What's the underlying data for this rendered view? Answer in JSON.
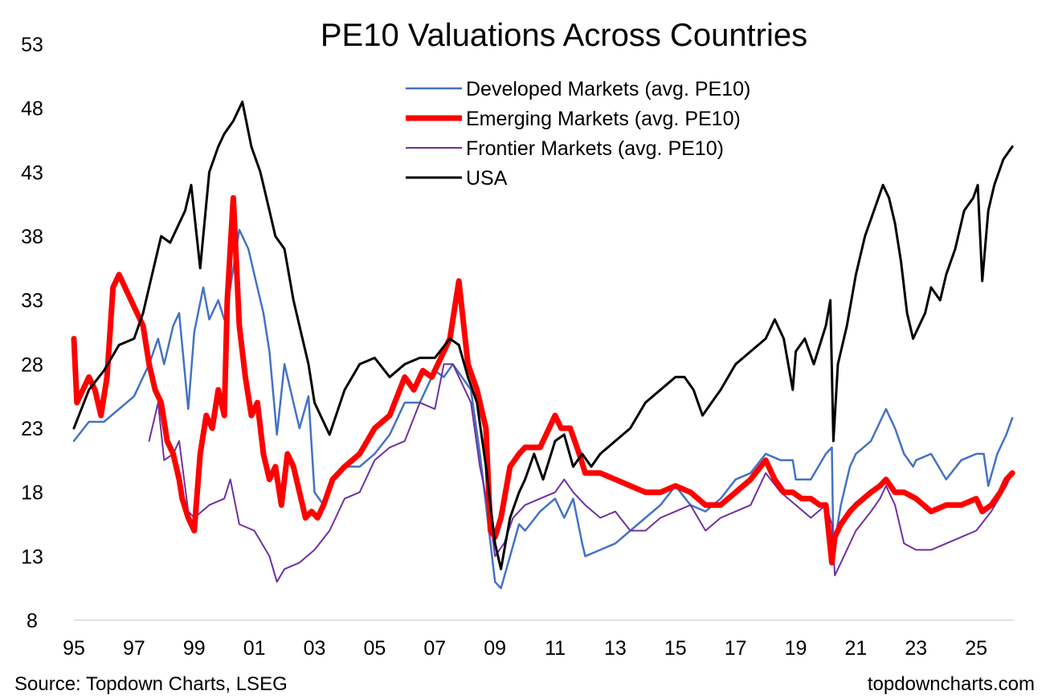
{
  "chart_data": {
    "type": "line",
    "title": "PE10 Valuations Across Countries",
    "xlabel": "",
    "ylabel": "",
    "xlim": [
      1995.0,
      2026.25
    ],
    "ylim": [
      8,
      53
    ],
    "y_ticks": [
      8,
      13,
      18,
      23,
      28,
      33,
      38,
      43,
      48,
      53
    ],
    "x_ticks": [
      {
        "value": 1995,
        "label": "95"
      },
      {
        "value": 1997,
        "label": "97"
      },
      {
        "value": 1999,
        "label": "99"
      },
      {
        "value": 2001,
        "label": "01"
      },
      {
        "value": 2003,
        "label": "03"
      },
      {
        "value": 2005,
        "label": "05"
      },
      {
        "value": 2007,
        "label": "07"
      },
      {
        "value": 2009,
        "label": "09"
      },
      {
        "value": 2011,
        "label": "11"
      },
      {
        "value": 2013,
        "label": "13"
      },
      {
        "value": 2015,
        "label": "15"
      },
      {
        "value": 2017,
        "label": "17"
      },
      {
        "value": 2019,
        "label": "19"
      },
      {
        "value": 2021,
        "label": "21"
      },
      {
        "value": 2023,
        "label": "23"
      },
      {
        "value": 2025,
        "label": "25"
      }
    ],
    "grid": false,
    "legend_position": "top-center",
    "series": [
      {
        "name": "Developed Markets (avg. PE10)",
        "color": "#4472C4",
        "x": [
          1995.0,
          1995.5,
          1996.0,
          1996.5,
          1997.0,
          1997.5,
          1997.8,
          1998.0,
          1998.3,
          1998.5,
          1998.8,
          1999.0,
          1999.3,
          1999.5,
          1999.8,
          2000.0,
          2000.2,
          2000.5,
          2000.8,
          2001.0,
          2001.3,
          2001.5,
          2001.75,
          2002.0,
          2002.3,
          2002.5,
          2002.8,
          2003.0,
          2003.3,
          2003.5,
          2004.0,
          2004.5,
          2005.0,
          2005.5,
          2006.0,
          2006.5,
          2007.0,
          2007.3,
          2007.6,
          2007.9,
          2008.2,
          2008.5,
          2008.8,
          2009.0,
          2009.2,
          2009.5,
          2009.8,
          2010.0,
          2010.5,
          2011.0,
          2011.3,
          2011.6,
          2011.9,
          2012.0,
          2012.5,
          2013.0,
          2013.5,
          2014.0,
          2014.5,
          2015.0,
          2015.5,
          2016.0,
          2016.5,
          2017.0,
          2017.5,
          2018.0,
          2018.5,
          2018.9,
          2019.0,
          2019.5,
          2020.0,
          2020.2,
          2020.25,
          2020.5,
          2020.8,
          2021.0,
          2021.5,
          2021.8,
          2022.0,
          2022.3,
          2022.6,
          2022.9,
          2023.0,
          2023.5,
          2024.0,
          2024.5,
          2025.0,
          2025.25,
          2025.4,
          2025.7,
          2026.0,
          2026.2
        ],
        "y": [
          22,
          23.5,
          23.5,
          24.5,
          25.5,
          28,
          30,
          28,
          31,
          32,
          24.5,
          30.5,
          34,
          31.5,
          33,
          31.5,
          34,
          38.5,
          37,
          35,
          32,
          29,
          22.5,
          28,
          25,
          23,
          25.5,
          18,
          17,
          18.5,
          20,
          20,
          21,
          22.5,
          25,
          25,
          27.5,
          27,
          28,
          27,
          26,
          21,
          15,
          11,
          10.5,
          13,
          15.5,
          15,
          16.5,
          17.5,
          16,
          17.5,
          14,
          13,
          13.5,
          14,
          15,
          16,
          17,
          18.5,
          17,
          16.5,
          17.5,
          19,
          19.5,
          21,
          20.5,
          20.5,
          19,
          19,
          21,
          21.5,
          13.5,
          17,
          20,
          21,
          22,
          23.5,
          24.5,
          23,
          21,
          20,
          20.5,
          21,
          19,
          20.5,
          21,
          21,
          18.5,
          21,
          22.5,
          23.8
        ]
      },
      {
        "name": "Emerging Markets (avg. PE10)",
        "color": "#FF0000",
        "x": [
          1995.0,
          1995.1,
          1995.3,
          1995.5,
          1995.7,
          1995.9,
          1996.1,
          1996.3,
          1996.5,
          1996.7,
          1996.9,
          1997.1,
          1997.3,
          1997.5,
          1997.7,
          1997.9,
          1998.1,
          1998.3,
          1998.5,
          1998.6,
          1998.8,
          1999.0,
          1999.2,
          1999.4,
          1999.6,
          1999.8,
          2000.0,
          2000.1,
          2000.3,
          2000.5,
          2000.7,
          2000.9,
          2001.1,
          2001.3,
          2001.5,
          2001.7,
          2001.9,
          2002.1,
          2002.3,
          2002.5,
          2002.7,
          2002.9,
          2003.1,
          2003.3,
          2003.6,
          2004.0,
          2004.5,
          2005.0,
          2005.5,
          2006.0,
          2006.3,
          2006.6,
          2006.9,
          2007.2,
          2007.5,
          2007.8,
          2008.1,
          2008.4,
          2008.7,
          2008.85,
          2009.0,
          2009.2,
          2009.5,
          2009.8,
          2010.0,
          2010.5,
          2011.0,
          2011.2,
          2011.5,
          2011.8,
          2012.0,
          2012.5,
          2013.0,
          2013.5,
          2014.0,
          2014.5,
          2015.0,
          2015.5,
          2016.0,
          2016.5,
          2017.0,
          2017.5,
          2018.0,
          2018.3,
          2018.6,
          2018.9,
          2019.2,
          2019.5,
          2019.8,
          2020.0,
          2020.2,
          2020.3,
          2020.5,
          2020.8,
          2021.0,
          2021.5,
          2021.8,
          2022.0,
          2022.3,
          2022.6,
          2023.0,
          2023.5,
          2024.0,
          2024.5,
          2025.0,
          2025.2,
          2025.5,
          2025.8,
          2026.0,
          2026.2
        ],
        "y": [
          30,
          25,
          26,
          27,
          26,
          24,
          27,
          34,
          35,
          34,
          33,
          32,
          31,
          28,
          26,
          25,
          22,
          21,
          19,
          17.5,
          16,
          15,
          21,
          24,
          23,
          26,
          24,
          33,
          41,
          31,
          27,
          24,
          25,
          21,
          19,
          20,
          17,
          21,
          20,
          18,
          16,
          16.5,
          16,
          17,
          19,
          20,
          21,
          23,
          24,
          27,
          26,
          27.5,
          27,
          28.5,
          30,
          34.5,
          28,
          26,
          23,
          15,
          14.5,
          16,
          20,
          21,
          21.5,
          21.5,
          24,
          23,
          23,
          21,
          19.5,
          19.5,
          19,
          18.5,
          18,
          18,
          18.5,
          18,
          17,
          17,
          18,
          19,
          20.5,
          19,
          18,
          18,
          17.5,
          17.5,
          17,
          17,
          12.5,
          14.5,
          15.5,
          16.5,
          17,
          18,
          18.5,
          19,
          18,
          18,
          17.5,
          16.5,
          17,
          17,
          17.5,
          16.5,
          17,
          18,
          19,
          19.5
        ]
      },
      {
        "name": "Frontier Markets (avg. PE10)",
        "color": "#7030A0",
        "x": [
          1997.5,
          1997.8,
          1998.0,
          1998.3,
          1998.5,
          1998.8,
          1999.0,
          1999.5,
          2000.0,
          2000.2,
          2000.5,
          2001.0,
          2001.5,
          2001.75,
          2002.0,
          2002.5,
          2003.0,
          2003.5,
          2004.0,
          2004.5,
          2005.0,
          2005.5,
          2006.0,
          2006.5,
          2007.0,
          2007.3,
          2007.6,
          2007.9,
          2008.2,
          2008.5,
          2008.8,
          2009.0,
          2009.3,
          2009.6,
          2010.0,
          2010.5,
          2011.0,
          2011.3,
          2011.6,
          2012.0,
          2012.5,
          2013.0,
          2013.5,
          2014.0,
          2014.5,
          2015.0,
          2015.5,
          2016.0,
          2016.5,
          2017.0,
          2017.5,
          2018.0,
          2018.5,
          2019.0,
          2019.5,
          2020.0,
          2020.2,
          2020.3,
          2020.6,
          2021.0,
          2021.5,
          2021.8,
          2022.0,
          2022.3,
          2022.6,
          2023.0,
          2023.5,
          2024.0,
          2024.5,
          2025.0,
          2025.5,
          2026.0,
          2026.2
        ],
        "y": [
          22,
          25,
          20.5,
          21,
          22,
          16.5,
          16,
          17,
          17.5,
          19,
          15.5,
          15,
          13,
          11,
          12,
          12.5,
          13.5,
          15,
          17.5,
          18,
          20.5,
          21.5,
          22,
          25,
          24.5,
          28,
          28,
          26.5,
          25,
          20,
          16.5,
          13,
          14,
          16,
          17,
          17.5,
          18,
          19,
          18,
          17,
          16,
          16.5,
          15,
          15,
          16,
          16.5,
          17,
          15,
          16,
          16.5,
          17,
          19.5,
          18,
          17,
          16,
          17,
          15.5,
          11.5,
          13,
          15,
          16.5,
          17.5,
          18.5,
          17,
          14,
          13.5,
          13.5,
          14,
          14.5,
          15,
          16.5,
          18.5,
          19.5
        ]
      },
      {
        "name": "USA",
        "color": "#000000",
        "x": [
          1995.0,
          1995.5,
          1996.0,
          1996.5,
          1997.0,
          1997.3,
          1997.6,
          1997.9,
          1998.2,
          1998.5,
          1998.7,
          1998.9,
          1999.2,
          1999.5,
          1999.8,
          2000.0,
          2000.3,
          2000.6,
          2000.9,
          2001.2,
          2001.5,
          2001.7,
          2002.0,
          2002.3,
          2002.6,
          2002.8,
          2003.0,
          2003.2,
          2003.5,
          2004.0,
          2004.5,
          2005.0,
          2005.5,
          2006.0,
          2006.5,
          2007.0,
          2007.5,
          2007.8,
          2008.1,
          2008.4,
          2008.7,
          2009.0,
          2009.2,
          2009.5,
          2009.8,
          2010.0,
          2010.3,
          2010.6,
          2011.0,
          2011.3,
          2011.6,
          2011.9,
          2012.2,
          2012.5,
          2013.0,
          2013.5,
          2014.0,
          2014.5,
          2015.0,
          2015.3,
          2015.6,
          2015.9,
          2016.2,
          2016.5,
          2017.0,
          2017.5,
          2018.0,
          2018.3,
          2018.6,
          2018.9,
          2019.0,
          2019.3,
          2019.6,
          2020.0,
          2020.15,
          2020.25,
          2020.4,
          2020.7,
          2021.0,
          2021.3,
          2021.6,
          2021.9,
          2022.1,
          2022.3,
          2022.5,
          2022.7,
          2022.9,
          2023.1,
          2023.3,
          2023.5,
          2023.8,
          2024.0,
          2024.3,
          2024.6,
          2024.9,
          2025.05,
          2025.2,
          2025.4,
          2025.6,
          2025.9,
          2026.2
        ],
        "y": [
          23,
          26,
          27.5,
          29.5,
          30,
          32,
          35,
          38,
          37.5,
          39,
          40,
          42,
          35.5,
          43,
          45,
          46,
          47,
          48.5,
          45,
          43,
          40,
          38,
          37,
          33,
          30,
          28,
          25,
          24,
          22.5,
          26,
          28,
          28.5,
          27,
          28,
          28.5,
          28.5,
          30,
          29.5,
          27,
          25,
          20,
          14,
          12,
          16,
          18,
          19,
          21,
          19,
          22,
          22.5,
          20,
          21,
          20,
          21,
          22,
          23,
          25,
          26,
          27,
          27,
          26,
          24,
          25,
          26,
          28,
          29,
          30,
          31.5,
          30,
          26,
          29,
          30,
          28,
          31,
          33,
          22,
          28,
          31,
          35,
          38,
          40,
          42,
          41,
          39,
          36,
          32,
          30,
          31,
          32,
          34,
          33,
          35,
          37,
          40,
          41,
          42,
          34.5,
          40,
          42,
          44,
          45
        ]
      }
    ]
  },
  "footer": {
    "source": "Source: Topdown Charts, LSEG",
    "site": "topdowncharts.com"
  }
}
